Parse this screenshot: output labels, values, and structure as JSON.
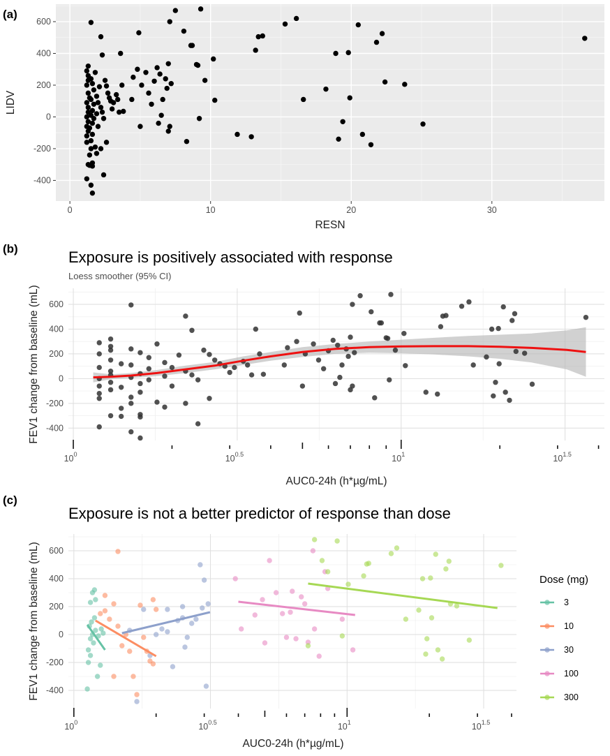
{
  "figure": {
    "panel_labels": [
      "(a)",
      "(b)",
      "(c)"
    ]
  },
  "chart_data": [
    {
      "panel": "(a)",
      "type": "scatter",
      "title": "",
      "xlabel": "RESN",
      "ylabel": "LIDV",
      "x_ticks": [
        0,
        10,
        20,
        30
      ],
      "y_ticks": [
        -400,
        -200,
        0,
        200,
        400,
        600
      ],
      "xlim": [
        -1,
        38
      ],
      "ylim": [
        -530,
        710
      ],
      "grid": true,
      "point_color": "#000000",
      "points": [
        [
          1.2,
          -390
        ],
        [
          1.3,
          -300
        ],
        [
          1.4,
          -305
        ],
        [
          1.6,
          -310
        ],
        [
          1.5,
          -430
        ],
        [
          1.6,
          -480
        ],
        [
          1.2,
          -160
        ],
        [
          1.2,
          -120
        ],
        [
          1.3,
          -90
        ],
        [
          1.2,
          -60
        ],
        [
          1.3,
          -30
        ],
        [
          1.2,
          0
        ],
        [
          1.3,
          30
        ],
        [
          1.3,
          60
        ],
        [
          1.2,
          90
        ],
        [
          1.4,
          120
        ],
        [
          1.3,
          150
        ],
        [
          1.2,
          200
        ],
        [
          1.3,
          230
        ],
        [
          1.3,
          260
        ],
        [
          1.2,
          290
        ],
        [
          1.3,
          320
        ],
        [
          1.5,
          -200
        ],
        [
          1.5,
          -150
        ],
        [
          1.6,
          -110
        ],
        [
          1.4,
          -70
        ],
        [
          1.6,
          -40
        ],
        [
          1.5,
          10
        ],
        [
          1.6,
          40
        ],
        [
          1.7,
          80
        ],
        [
          1.5,
          110
        ],
        [
          1.7,
          170
        ],
        [
          1.6,
          210
        ],
        [
          1.5,
          240
        ],
        [
          1.8,
          280
        ],
        [
          1.4,
          -240
        ],
        [
          1.7,
          -10
        ],
        [
          1.9,
          20
        ],
        [
          1.5,
          595
        ],
        [
          1.9,
          -230
        ],
        [
          1.8,
          -190
        ],
        [
          2.0,
          -60
        ],
        [
          2.0,
          90
        ],
        [
          2.1,
          190
        ],
        [
          1.9,
          130
        ],
        [
          2.2,
          60
        ],
        [
          2.3,
          30
        ],
        [
          2.4,
          -10
        ],
        [
          2.2,
          -200
        ],
        [
          2.2,
          505
        ],
        [
          2.3,
          390
        ],
        [
          2.5,
          230
        ],
        [
          2.6,
          195
        ],
        [
          2.7,
          150
        ],
        [
          2.8,
          120
        ],
        [
          2.9,
          100
        ],
        [
          3.1,
          90
        ],
        [
          2.4,
          -365
        ],
        [
          1.6,
          -290
        ],
        [
          3.3,
          140
        ],
        [
          3.4,
          110
        ],
        [
          3.0,
          50
        ],
        [
          3.5,
          30
        ],
        [
          2.6,
          -160
        ],
        [
          3.6,
          400
        ],
        [
          3.7,
          200
        ],
        [
          3.8,
          35
        ],
        [
          4.4,
          110
        ],
        [
          4.5,
          250
        ],
        [
          4.8,
          300
        ],
        [
          4.9,
          530
        ],
        [
          5.1,
          200
        ],
        [
          5.0,
          -60
        ],
        [
          5.4,
          280
        ],
        [
          5.6,
          150
        ],
        [
          5.8,
          80
        ],
        [
          6.0,
          225
        ],
        [
          6.2,
          310
        ],
        [
          6.3,
          -40
        ],
        [
          6.4,
          270
        ],
        [
          6.5,
          10
        ],
        [
          6.6,
          110
        ],
        [
          6.8,
          240
        ],
        [
          6.9,
          180
        ],
        [
          7.0,
          335
        ],
        [
          7.1,
          600
        ],
        [
          7.1,
          -60
        ],
        [
          7.0,
          -90
        ],
        [
          7.2,
          210
        ],
        [
          7.5,
          670
        ],
        [
          8.1,
          540
        ],
        [
          8.3,
          -155
        ],
        [
          8.6,
          450
        ],
        [
          8.7,
          450
        ],
        [
          9.0,
          330
        ],
        [
          9.1,
          325
        ],
        [
          9.2,
          -10
        ],
        [
          9.3,
          680
        ],
        [
          9.6,
          230
        ],
        [
          10.2,
          365
        ],
        [
          10.3,
          105
        ],
        [
          11.9,
          -110
        ],
        [
          12.9,
          -125
        ],
        [
          13.2,
          420
        ],
        [
          13.4,
          505
        ],
        [
          13.7,
          510
        ],
        [
          15.3,
          585
        ],
        [
          16.1,
          620
        ],
        [
          16.6,
          110
        ],
        [
          18.2,
          175
        ],
        [
          18.9,
          400
        ],
        [
          19.1,
          -140
        ],
        [
          19.4,
          -30
        ],
        [
          19.8,
          405
        ],
        [
          19.9,
          120
        ],
        [
          20.5,
          580
        ],
        [
          20.8,
          -110
        ],
        [
          21.4,
          -175
        ],
        [
          21.8,
          470
        ],
        [
          22.2,
          525
        ],
        [
          22.4,
          220
        ],
        [
          23.8,
          205
        ],
        [
          25.1,
          -45
        ],
        [
          36.6,
          495
        ]
      ]
    },
    {
      "panel": "(b)",
      "type": "scatter",
      "title": "Exposure is positively associated with response",
      "subtitle": "Loess smoother (95% CI)",
      "xlabel": "AUC0-24h (h*µg/mL)",
      "ylabel": "FEV1 change from baseline (mL)",
      "x_scale": "log10",
      "x_ticks": [
        {
          "value": 1,
          "base": "10",
          "exp": "0"
        },
        {
          "value": 3.1623,
          "base": "10",
          "exp": "0.5"
        },
        {
          "value": 10,
          "base": "10",
          "exp": "1"
        },
        {
          "value": 31.623,
          "base": "10",
          "exp": "1.5"
        }
      ],
      "y_ticks": [
        -400,
        -200,
        0,
        200,
        400,
        600
      ],
      "ylim": [
        -500,
        730
      ],
      "grid": true,
      "point_color": "#333333",
      "smoother_color": "#ee1111",
      "ci_color": "#b3b3b3",
      "smoother": {
        "x": [
          1.15,
          1.3,
          1.5,
          1.8,
          2.2,
          2.7,
          3.3,
          4.0,
          5.0,
          6.3,
          8.0,
          10.0,
          12.6,
          16.0,
          20.0,
          25.0,
          32.0,
          36.6
        ],
        "y": [
          10,
          15,
          25,
          45,
          75,
          105,
          145,
          180,
          215,
          240,
          255,
          260,
          262,
          262,
          258,
          248,
          232,
          215
        ],
        "lower": [
          -30,
          -5,
          5,
          20,
          45,
          75,
          110,
          145,
          175,
          200,
          210,
          205,
          195,
          180,
          160,
          130,
          75,
          15
        ],
        "upper": [
          50,
          35,
          45,
          70,
          105,
          135,
          180,
          215,
          255,
          280,
          300,
          315,
          330,
          345,
          355,
          365,
          390,
          415
        ]
      },
      "series_ref": "points same as panel (a) RESN vs LIDV"
    },
    {
      "panel": "(c)",
      "type": "scatter",
      "title": "Exposure is not a better predictor of response than dose",
      "xlabel": "AUC0-24h (h*µg/mL)",
      "ylabel": "FEV1 change from baseline (mL)",
      "x_scale": "log10",
      "x_ticks": [
        {
          "value": 1,
          "base": "10",
          "exp": "0"
        },
        {
          "value": 3.1623,
          "base": "10",
          "exp": "0.5"
        },
        {
          "value": 10,
          "base": "10",
          "exp": "1"
        },
        {
          "value": 31.623,
          "base": "10",
          "exp": "1.5"
        }
      ],
      "y_ticks": [
        -400,
        -200,
        0,
        200,
        400,
        600
      ],
      "ylim": [
        -530,
        720
      ],
      "grid": true,
      "legend": {
        "title": "Dose (mg)",
        "position": "right"
      },
      "series": [
        {
          "name": "3",
          "color": "#66c2a5",
          "fit": {
            "x": [
              1.12,
              1.3
            ],
            "y": [
              70,
              -110
            ]
          },
          "points": [
            [
              1.12,
              -390
            ],
            [
              1.13,
              -200
            ],
            [
              1.15,
              -150
            ],
            [
              1.13,
              -110
            ],
            [
              1.18,
              -60
            ],
            [
              1.15,
              -30
            ],
            [
              1.17,
              0
            ],
            [
              1.2,
              30
            ],
            [
              1.14,
              60
            ],
            [
              1.16,
              90
            ],
            [
              1.19,
              120
            ],
            [
              1.15,
              230
            ],
            [
              1.2,
              250
            ],
            [
              1.17,
              300
            ],
            [
              1.19,
              320
            ],
            [
              1.22,
              -300
            ],
            [
              1.25,
              -220
            ],
            [
              1.23,
              -10
            ],
            [
              1.26,
              40
            ],
            [
              1.28,
              10
            ]
          ]
        },
        {
          "name": "10",
          "color": "#fc8d62",
          "fit": {
            "x": [
              1.2,
              2.0
            ],
            "y": [
              100,
              -155
            ]
          },
          "points": [
            [
              1.45,
              595
            ],
            [
              1.25,
              150
            ],
            [
              1.3,
              280
            ],
            [
              1.35,
              110
            ],
            [
              1.4,
              -300
            ],
            [
              1.4,
              220
            ],
            [
              1.45,
              60
            ],
            [
              1.5,
              -80
            ],
            [
              1.55,
              0
            ],
            [
              1.6,
              -120
            ],
            [
              1.65,
              -300
            ],
            [
              1.7,
              -430
            ],
            [
              1.75,
              210
            ],
            [
              1.8,
              -20
            ],
            [
              1.85,
              -120
            ],
            [
              1.9,
              -190
            ],
            [
              1.95,
              -210
            ],
            [
              2.0,
              180
            ],
            [
              1.95,
              250
            ],
            [
              1.3,
              170
            ]
          ]
        },
        {
          "name": "30",
          "color": "#8da0cb",
          "fit": {
            "x": [
              1.5,
              3.15
            ],
            "y": [
              10,
              160
            ]
          },
          "points": [
            [
              1.7,
              -480
            ],
            [
              1.6,
              30
            ],
            [
              1.8,
              180
            ],
            [
              1.9,
              -150
            ],
            [
              2.0,
              0
            ],
            [
              2.1,
              40
            ],
            [
              2.2,
              180
            ],
            [
              2.3,
              -230
            ],
            [
              2.4,
              100
            ],
            [
              2.5,
              120
            ],
            [
              2.55,
              -90
            ],
            [
              2.6,
              -20
            ],
            [
              2.7,
              80
            ],
            [
              2.8,
              110
            ],
            [
              2.9,
              500
            ],
            [
              2.95,
              190
            ],
            [
              3.0,
              390
            ],
            [
              3.05,
              -370
            ],
            [
              3.1,
              220
            ],
            [
              2.5,
              200
            ],
            [
              2.2,
              20
            ]
          ]
        },
        {
          "name": "100",
          "color": "#e78ac3",
          "fit": {
            "x": [
              4.0,
              10.7
            ],
            "y": [
              235,
              140
            ]
          },
          "points": [
            [
              3.9,
              400
            ],
            [
              4.1,
              40
            ],
            [
              4.6,
              140
            ],
            [
              4.9,
              250
            ],
            [
              5.0,
              -60
            ],
            [
              5.2,
              530
            ],
            [
              5.5,
              300
            ],
            [
              5.8,
              150
            ],
            [
              6.0,
              -20
            ],
            [
              6.2,
              160
            ],
            [
              6.3,
              310
            ],
            [
              6.5,
              -30
            ],
            [
              6.8,
              270
            ],
            [
              7.0,
              220
            ],
            [
              7.2,
              -55
            ],
            [
              7.5,
              600
            ],
            [
              7.6,
              40
            ],
            [
              7.9,
              -155
            ],
            [
              8.3,
              450
            ],
            [
              8.5,
              330
            ],
            [
              9.6,
              110
            ],
            [
              10.5,
              -110
            ]
          ]
        },
        {
          "name": "300",
          "color": "#a6d854",
          "fit": {
            "x": [
              7.2,
              35.5
            ],
            "y": [
              365,
              190
            ]
          },
          "points": [
            [
              7.2,
              -80
            ],
            [
              7.6,
              680
            ],
            [
              8.1,
              530
            ],
            [
              8.5,
              450
            ],
            [
              9.2,
              670
            ],
            [
              9.6,
              -10
            ],
            [
              10.1,
              360
            ],
            [
              11.5,
              420
            ],
            [
              11.8,
              505
            ],
            [
              12.0,
              510
            ],
            [
              14.5,
              580
            ],
            [
              15.2,
              620
            ],
            [
              16.4,
              110
            ],
            [
              18.3,
              175
            ],
            [
              18.9,
              400
            ],
            [
              19.4,
              -140
            ],
            [
              19.6,
              -30
            ],
            [
              20.2,
              405
            ],
            [
              20.4,
              120
            ],
            [
              21.1,
              575
            ],
            [
              21.5,
              -110
            ],
            [
              22.3,
              -175
            ],
            [
              23.0,
              470
            ],
            [
              23.6,
              525
            ],
            [
              23.9,
              220
            ],
            [
              25.2,
              205
            ],
            [
              28.0,
              -40
            ],
            [
              36.6,
              495
            ]
          ]
        }
      ]
    }
  ]
}
